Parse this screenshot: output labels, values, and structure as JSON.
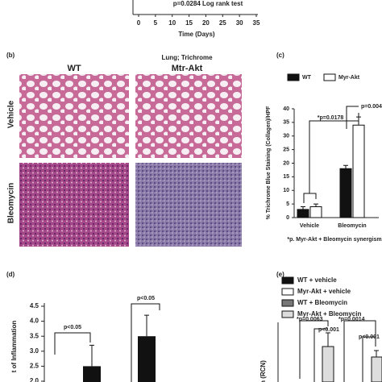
{
  "panel_a": {
    "xticks": [
      0,
      5,
      10,
      15,
      20,
      25,
      30,
      35
    ],
    "xlim": [
      0,
      35
    ],
    "x_label": "Time (Days)",
    "annotation": "p=0.0284 Log rank test"
  },
  "panel_b": {
    "label": "(b)",
    "title": "Lung; Trichrome",
    "columns": [
      "WT",
      "Mtr-Akt"
    ],
    "rows": [
      "Vehicle",
      "Bleomycin"
    ]
  },
  "panel_c": {
    "label": "(c)",
    "type": "bar",
    "y_label": "% Trichrome Blue Staining (Collagen)/HPF",
    "categories": [
      "Vehicle",
      "Bleomycin"
    ],
    "series": [
      {
        "name": "WT",
        "color": "#111111",
        "values": [
          3,
          18
        ],
        "errors": [
          1,
          1.2
        ]
      },
      {
        "name": "Myr-Akt",
        "color": "#ffffff",
        "values": [
          4,
          34
        ],
        "errors": [
          1,
          3
        ]
      }
    ],
    "ylim": [
      0,
      40
    ],
    "yticks": [
      0,
      5,
      10,
      15,
      20,
      25,
      30,
      35,
      40
    ],
    "annotations": [
      "*p=0.0178",
      "p=0.004"
    ],
    "footnote": "*p. Myr-Akt + Bleomycin synergism"
  },
  "panel_d": {
    "label": "(d)",
    "type": "bar",
    "y_label": "t of Inflammation",
    "values": [
      2.5,
      3.5
    ],
    "errors": [
      0.7,
      0.7
    ],
    "colors": [
      "#111111",
      "#111111"
    ],
    "ylim": [
      2,
      4.5
    ],
    "yticks": [
      {
        "value": 2,
        "label": "2.0"
      },
      {
        "value": 2.5,
        "label": "2.5"
      },
      {
        "value": 3,
        "label": "3.0"
      },
      {
        "value": 3.5,
        "label": "3.5"
      },
      {
        "value": 4,
        "label": "4.0"
      },
      {
        "value": 4.5,
        "label": "4.5"
      }
    ],
    "annotations": [
      "p<0.05",
      "p<0.05"
    ]
  },
  "panel_e": {
    "label": "(e)",
    "y_label": "n (RCN)",
    "legend": [
      {
        "name": "WT + vehicle",
        "color": "#111111"
      },
      {
        "name": "Myr-Akt + vehicle",
        "color": "#ffffff"
      },
      {
        "name": "WT + Bleomycin",
        "color": "#777777"
      },
      {
        "name": "Myr-Akt + Bleomycin",
        "color": "#dddddd"
      }
    ],
    "annotations": [
      "*p=0.0063",
      "p<0.001",
      "*p=0.0014",
      "p<0.001"
    ]
  }
}
